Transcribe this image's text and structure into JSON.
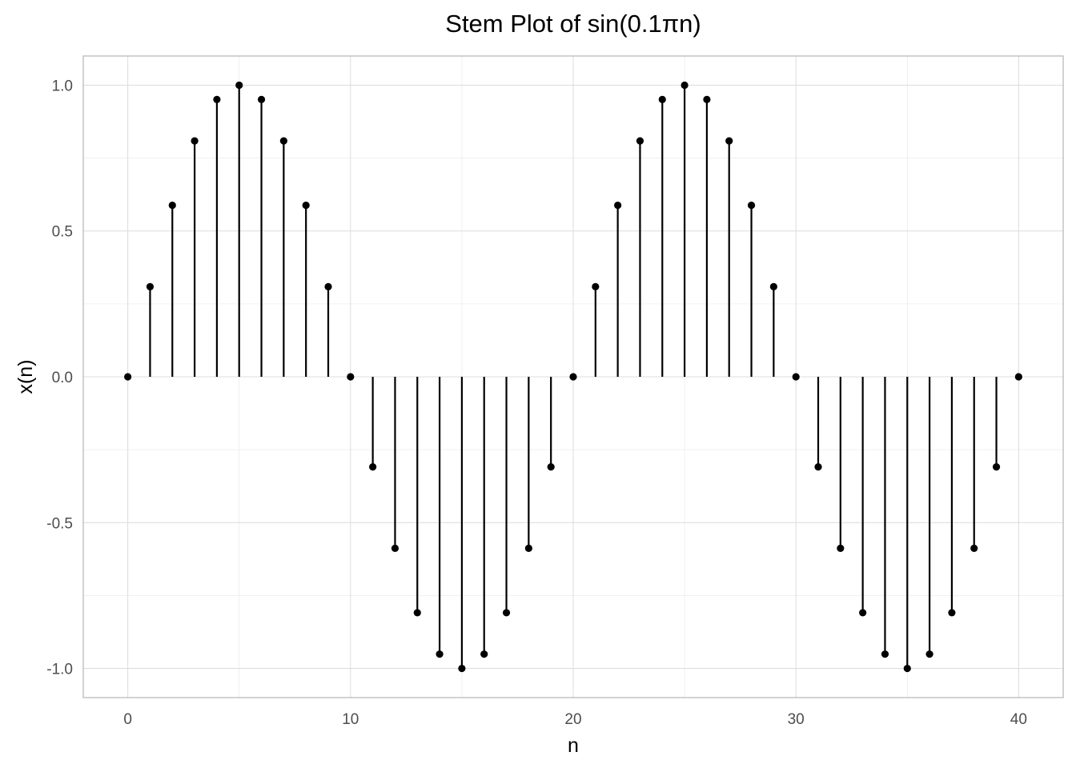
{
  "chart_data": {
    "type": "scatter",
    "style": "stem",
    "title": "Stem Plot of sin(0.1πn)",
    "xlabel": "n",
    "ylabel": "x(n)",
    "xlim": [
      -2,
      42
    ],
    "ylim": [
      -1.1,
      1.1
    ],
    "x_ticks": [
      0,
      10,
      20,
      30,
      40
    ],
    "x_tick_labels": [
      "0",
      "10",
      "20",
      "30",
      "40"
    ],
    "y_ticks": [
      1.0,
      0.5,
      0.0,
      -0.5,
      -1.0
    ],
    "y_tick_labels": [
      "1.0",
      "0.5",
      "0.0",
      "-0.5",
      "-1.0"
    ],
    "grid": true,
    "baseline": 0,
    "x": [
      0,
      1,
      2,
      3,
      4,
      5,
      6,
      7,
      8,
      9,
      10,
      11,
      12,
      13,
      14,
      15,
      16,
      17,
      18,
      19,
      20,
      21,
      22,
      23,
      24,
      25,
      26,
      27,
      28,
      29,
      30,
      31,
      32,
      33,
      34,
      35,
      36,
      37,
      38,
      39,
      40
    ],
    "y": [
      0,
      0.309,
      0.588,
      0.809,
      0.951,
      1,
      0.951,
      0.809,
      0.588,
      0.309,
      0,
      -0.309,
      -0.588,
      -0.809,
      -0.951,
      -1,
      -0.951,
      -0.809,
      -0.588,
      -0.309,
      0,
      0.309,
      0.588,
      0.809,
      0.951,
      1,
      0.951,
      0.809,
      0.588,
      0.309,
      0,
      -0.309,
      -0.588,
      -0.809,
      -0.951,
      -1,
      -0.951,
      -0.809,
      -0.588,
      -0.309,
      0
    ],
    "colors": {
      "stem": "#000000",
      "point": "#000000",
      "grid": "#dcdcdc",
      "tick_text": "#4d4d4d"
    }
  }
}
